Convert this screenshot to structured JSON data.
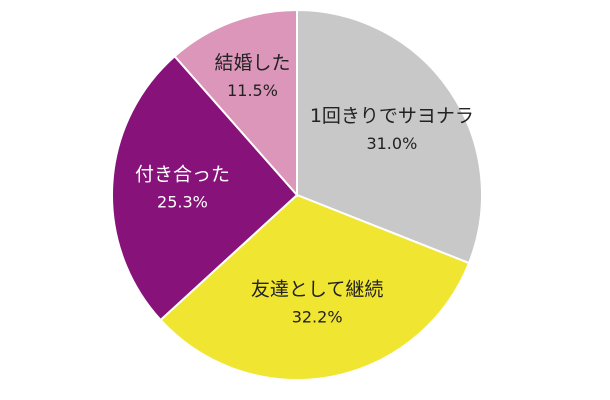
{
  "chart_data": {
    "type": "pie",
    "title": "",
    "slices": [
      {
        "label": "1回きりでサヨナラ",
        "value": 31.0,
        "value_label": "31.0%",
        "color": "#c8c8c8"
      },
      {
        "label": "友達として継続",
        "value": 32.2,
        "value_label": "32.2%",
        "color": "#f0e530"
      },
      {
        "label": "付き合った",
        "value": 25.3,
        "value_label": "25.3%",
        "color": "#86127a"
      },
      {
        "label": "結婚した",
        "value": 11.5,
        "value_label": "11.5%",
        "color": "#dc96ba"
      }
    ],
    "start": "12 o'clock",
    "direction": "clockwise"
  }
}
